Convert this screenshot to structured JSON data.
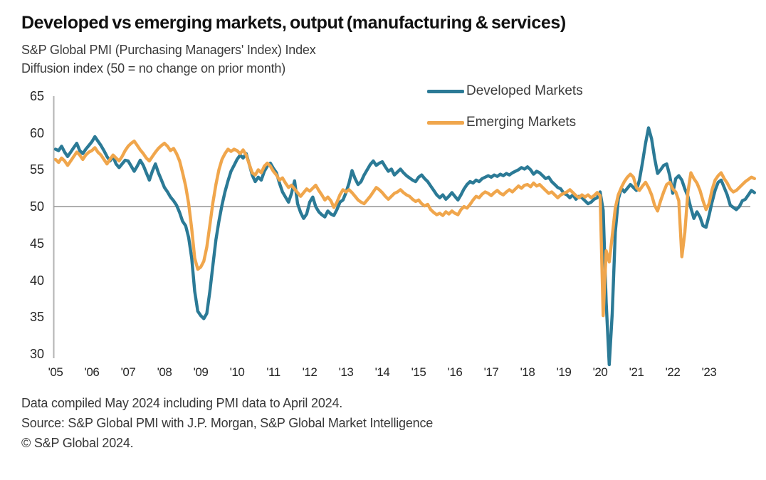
{
  "title": "Developed vs emerging markets, output (manufacturing & services)",
  "subtitle_line1": "S&P Global PMI (Purchasing Managers' Index) Index",
  "subtitle_line2": "Diffusion index (50 = no change on prior month)",
  "legend": {
    "developed_label": "Developed Markets",
    "emerging_label": "Emerging Markets"
  },
  "colors": {
    "developed": "#2b7a96",
    "emerging": "#f0a64c",
    "reference_line": "#9b9b9b",
    "axis_line": "#b3b3b3",
    "text": "#262626"
  },
  "footer": {
    "line1": "Data compiled May 2024 including PMI data to April 2024.",
    "line2": "Source: S&P Global PMI with J.P. Morgan, S&P Global Market Intelligence",
    "line3": "© S&P Global 2024."
  },
  "chart_data": {
    "type": "line",
    "frequency": "monthly",
    "x_start": "2005-01",
    "x_end": "2024-04",
    "ylim": [
      30,
      65
    ],
    "y_ticks": [
      65,
      60,
      55,
      50,
      45,
      40,
      35,
      30
    ],
    "reference_value": 50,
    "x_tick_labels": [
      "'05",
      "'06",
      "'07",
      "'08",
      "'09",
      "'10",
      "'11",
      "'12",
      "'13",
      "'14",
      "'15",
      "'16",
      "'17",
      "'18",
      "'19",
      "'20",
      "'21",
      "'22",
      "'23"
    ],
    "legend_position": "top-right",
    "grid": "reference line at 50 only",
    "clipping_note": "Developed Markets April 2020 value falls below the 30 axis floor and is clipped in the plot",
    "series": [
      {
        "name": "Developed Markets",
        "color": "#2b7a96",
        "values": [
          57.8,
          57.6,
          58.2,
          57.4,
          56.8,
          57.4,
          58.0,
          58.6,
          57.6,
          57.2,
          57.8,
          58.3,
          58.8,
          59.5,
          58.9,
          58.3,
          57.6,
          56.8,
          56.2,
          56.8,
          55.8,
          55.3,
          55.8,
          56.3,
          56.2,
          55.5,
          54.8,
          55.5,
          56.3,
          55.6,
          54.6,
          53.6,
          54.8,
          55.8,
          54.6,
          53.6,
          52.6,
          52.0,
          51.3,
          50.8,
          50.2,
          49.2,
          48.0,
          47.4,
          45.8,
          43.0,
          38.5,
          35.8,
          35.2,
          34.8,
          35.5,
          38.5,
          42.0,
          45.5,
          48.0,
          50.2,
          52.0,
          53.5,
          54.8,
          55.6,
          56.4,
          57.0,
          56.6,
          57.2,
          55.8,
          54.3,
          53.4,
          54.0,
          53.6,
          54.8,
          55.5,
          55.9,
          55.2,
          54.6,
          53.2,
          52.0,
          51.3,
          50.6,
          51.8,
          53.5,
          50.4,
          49.2,
          48.4,
          49.0,
          50.6,
          51.3,
          50.0,
          49.3,
          48.9,
          48.6,
          49.4,
          49.0,
          48.8,
          49.6,
          50.6,
          50.9,
          51.9,
          53.2,
          54.9,
          53.8,
          53.0,
          53.4,
          54.3,
          55.0,
          55.7,
          56.2,
          55.6,
          55.9,
          56.1,
          55.4,
          54.8,
          55.1,
          54.3,
          54.7,
          55.1,
          54.6,
          54.2,
          53.9,
          53.6,
          53.4,
          54.0,
          54.3,
          53.8,
          53.4,
          52.8,
          52.2,
          51.6,
          51.2,
          51.6,
          51.0,
          51.4,
          51.9,
          51.4,
          50.9,
          51.6,
          52.4,
          53.0,
          53.4,
          53.2,
          53.6,
          53.4,
          53.8,
          54.0,
          54.2,
          54.0,
          54.3,
          54.1,
          54.4,
          54.2,
          54.5,
          54.3,
          54.6,
          54.8,
          55.0,
          55.3,
          55.1,
          55.4,
          55.0,
          54.4,
          54.8,
          54.6,
          54.2,
          53.8,
          54.0,
          53.4,
          53.0,
          52.6,
          52.4,
          51.8,
          51.6,
          51.2,
          51.6,
          51.0,
          51.4,
          51.2,
          50.8,
          50.4,
          50.6,
          51.0,
          51.2,
          52.0,
          49.5,
          37.0,
          25.0,
          35.5,
          46.5,
          51.0,
          52.5,
          52.0,
          52.5,
          53.0,
          52.6,
          52.2,
          53.6,
          56.0,
          58.6,
          60.7,
          59.2,
          56.6,
          54.5,
          55.0,
          55.6,
          55.8,
          54.2,
          51.8,
          53.8,
          54.2,
          53.6,
          52.4,
          51.4,
          49.8,
          48.4,
          49.3,
          48.6,
          47.4,
          47.2,
          48.8,
          50.6,
          52.2,
          53.3,
          53.6,
          52.6,
          51.6,
          50.2,
          49.9,
          49.6,
          50.0,
          50.8,
          51.0,
          51.6,
          52.2,
          51.9
        ]
      },
      {
        "name": "Emerging Markets",
        "color": "#f0a64c",
        "values": [
          56.4,
          56.0,
          56.6,
          56.2,
          55.6,
          56.2,
          56.8,
          57.4,
          57.0,
          56.4,
          57.0,
          57.4,
          57.6,
          58.0,
          57.4,
          57.0,
          56.4,
          55.8,
          56.4,
          57.0,
          56.6,
          56.2,
          56.8,
          57.6,
          58.2,
          58.6,
          58.9,
          58.3,
          57.7,
          57.2,
          56.6,
          56.2,
          56.8,
          57.4,
          57.9,
          58.3,
          58.6,
          58.2,
          57.6,
          57.9,
          57.2,
          56.2,
          54.6,
          52.8,
          50.4,
          47.0,
          43.0,
          41.5,
          41.8,
          42.6,
          44.5,
          47.5,
          50.5,
          53.0,
          55.0,
          56.4,
          57.2,
          57.8,
          57.5,
          57.8,
          57.6,
          57.2,
          57.7,
          57.0,
          55.8,
          54.6,
          54.3,
          55.0,
          54.6,
          55.5,
          55.9,
          55.5,
          54.8,
          54.3,
          53.6,
          53.9,
          53.2,
          52.6,
          52.9,
          52.4,
          51.9,
          51.4,
          51.9,
          52.4,
          52.1,
          52.5,
          52.9,
          52.2,
          51.6,
          50.9,
          51.3,
          50.8,
          49.9,
          50.6,
          51.6,
          52.3,
          52.0,
          52.3,
          51.9,
          51.4,
          50.9,
          50.6,
          50.4,
          50.9,
          51.4,
          52.0,
          52.6,
          52.3,
          51.9,
          51.4,
          51.0,
          51.4,
          51.8,
          52.0,
          52.3,
          51.9,
          51.6,
          51.4,
          51.0,
          50.7,
          50.9,
          50.4,
          50.1,
          50.3,
          49.6,
          49.2,
          48.9,
          49.1,
          48.8,
          49.3,
          49.0,
          49.4,
          49.1,
          48.9,
          49.6,
          50.0,
          49.8,
          50.3,
          50.9,
          51.4,
          51.2,
          51.7,
          52.0,
          51.8,
          51.5,
          51.9,
          52.2,
          51.8,
          51.6,
          52.0,
          52.3,
          52.0,
          52.4,
          52.8,
          52.5,
          52.9,
          53.0,
          52.7,
          53.2,
          52.8,
          53.0,
          52.6,
          52.2,
          51.8,
          52.0,
          51.6,
          51.2,
          51.6,
          51.8,
          52.0,
          52.3,
          51.9,
          51.5,
          51.2,
          51.6,
          51.3,
          51.6,
          51.2,
          51.5,
          51.9,
          51.5,
          35.2,
          44.0,
          42.5,
          46.0,
          49.8,
          51.6,
          52.6,
          53.4,
          54.0,
          54.4,
          54.0,
          52.6,
          52.2,
          52.8,
          53.3,
          52.6,
          51.6,
          50.2,
          49.4,
          50.8,
          52.0,
          53.0,
          53.3,
          52.4,
          52.0,
          50.8,
          43.2,
          46.5,
          52.0,
          54.6,
          53.8,
          53.2,
          52.2,
          50.8,
          49.6,
          50.4,
          52.3,
          53.6,
          54.2,
          54.6,
          53.8,
          53.2,
          52.4,
          52.0,
          52.2,
          52.6,
          53.0,
          53.4,
          53.7,
          54.0,
          53.8
        ]
      }
    ]
  }
}
